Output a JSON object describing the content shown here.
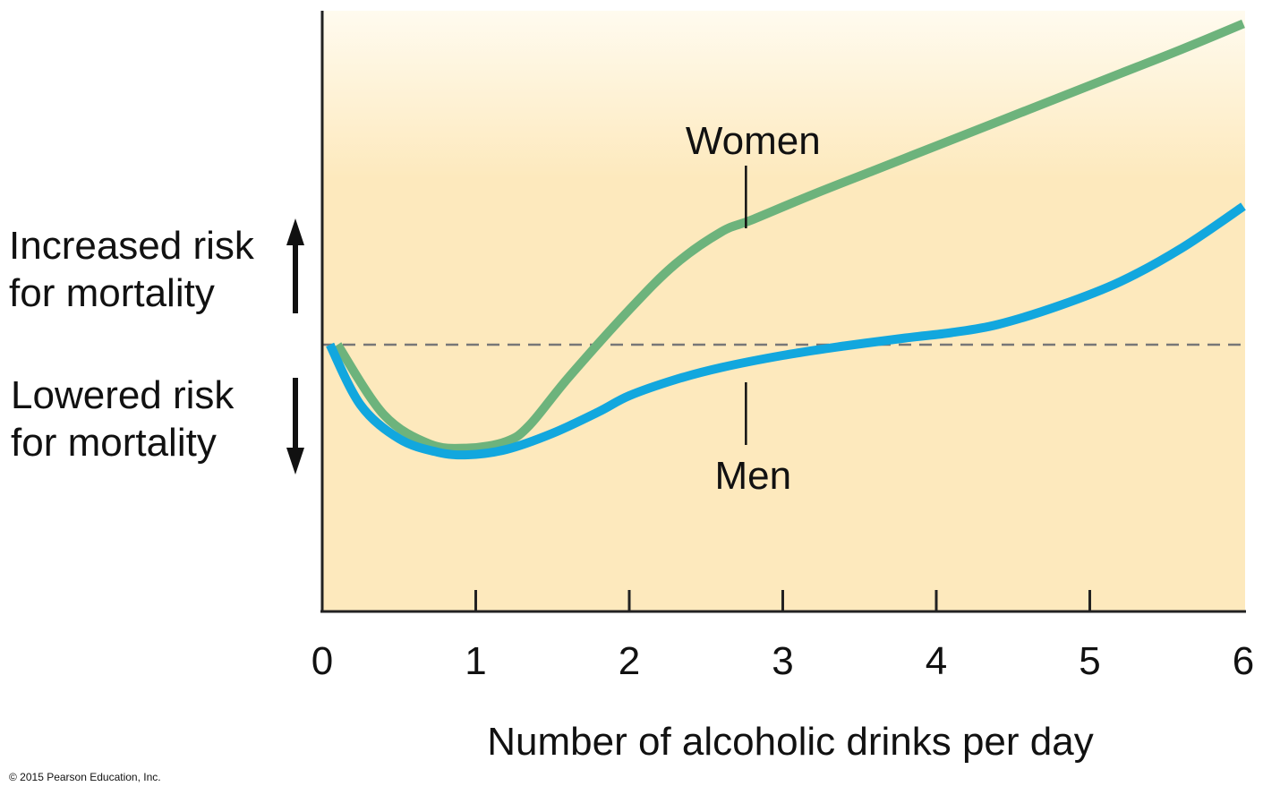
{
  "chart_data": {
    "type": "line",
    "xlabel": "Number of alcoholic drinks per day",
    "ylabel_up": [
      "Increased risk",
      "for mortality"
    ],
    "ylabel_down": [
      "Lowered risk",
      "for mortality"
    ],
    "x_ticks": [
      "0",
      "1",
      "2",
      "3",
      "4",
      "5",
      "6"
    ],
    "xlim": [
      0,
      6
    ],
    "y_scale": "relative mortality risk (unlabeled); 0 = baseline (dashed line), positive = increased risk",
    "ylim": [
      -2.15,
      2.2
    ],
    "baseline": 0,
    "grid": false,
    "series": [
      {
        "name": "Women",
        "color": "#6db37c",
        "x": [
          0.1,
          0.4,
          0.7,
          0.95,
          1.2,
          1.35,
          1.6,
          2.0,
          2.3,
          2.6,
          2.8,
          3.2,
          3.6,
          4.0,
          4.4,
          4.8,
          5.2,
          5.6,
          6.0
        ],
        "y": [
          0.0,
          -0.52,
          -0.74,
          -0.77,
          -0.72,
          -0.6,
          -0.25,
          0.26,
          0.6,
          0.84,
          0.93,
          1.12,
          1.3,
          1.48,
          1.66,
          1.84,
          2.02,
          2.2,
          2.39
        ]
      },
      {
        "name": "Men",
        "color": "#12a7de",
        "x": [
          0.05,
          0.25,
          0.5,
          0.75,
          0.95,
          1.2,
          1.5,
          1.8,
          2.0,
          2.3,
          2.6,
          3.0,
          3.4,
          3.8,
          4.1,
          4.4,
          4.8,
          5.2,
          5.6,
          6.0
        ],
        "y": [
          0.0,
          -0.45,
          -0.7,
          -0.8,
          -0.82,
          -0.78,
          -0.66,
          -0.5,
          -0.38,
          -0.26,
          -0.17,
          -0.08,
          -0.01,
          0.05,
          0.09,
          0.15,
          0.29,
          0.47,
          0.72,
          1.03
        ]
      }
    ],
    "annotations": [
      {
        "text": "Women",
        "x": 2.76,
        "y": 1.0
      },
      {
        "text": "Men",
        "x": 2.76,
        "y": -0.18
      }
    ]
  },
  "colors": {
    "plot_bg_top": "#fffbef",
    "plot_bg_bottom": "#fde9bd",
    "axis": "#222222",
    "baseline": "#777777"
  },
  "copyright": "© 2015 Pearson Education, Inc."
}
